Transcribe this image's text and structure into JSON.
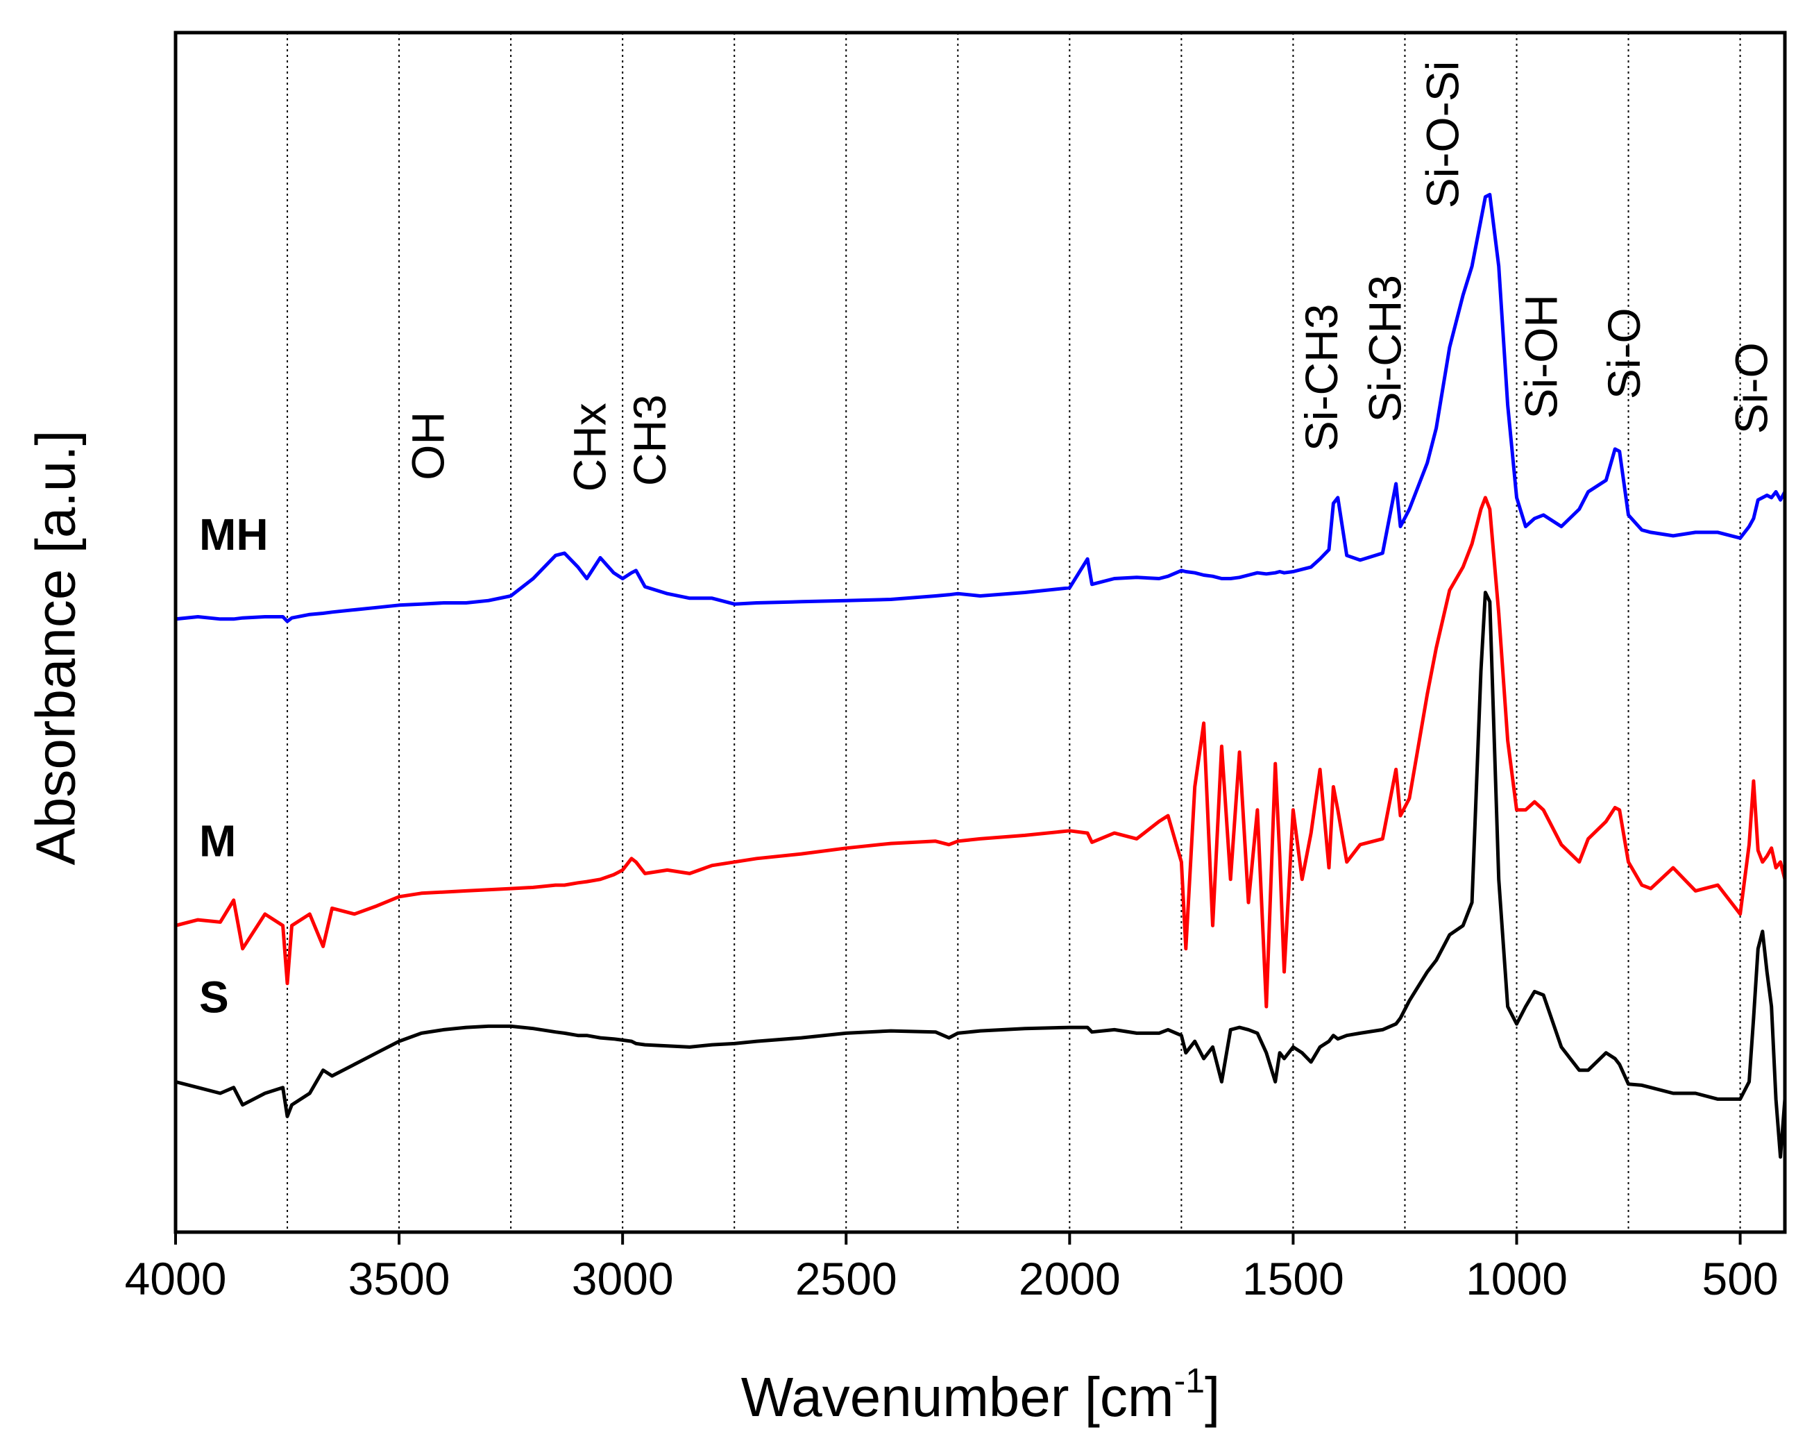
{
  "chart_data": {
    "type": "line",
    "x_label": [
      "Wavenumber [cm",
      "-1",
      "]"
    ],
    "y_label": "Absorbance [a.u.]",
    "xlim": [
      4000,
      400
    ],
    "ylim": [
      0,
      1037
    ],
    "xticks": [
      4000,
      3500,
      3000,
      2500,
      2000,
      1500,
      1000,
      500
    ],
    "xgrid": [
      3750,
      3500,
      3250,
      3000,
      2750,
      2500,
      2250,
      2000,
      1750,
      1500,
      1250,
      1000,
      750,
      500
    ],
    "x": [
      4000,
      3950,
      3900,
      3870,
      3850,
      3800,
      3760,
      3750,
      3740,
      3700,
      3670,
      3650,
      3600,
      3550,
      3500,
      3450,
      3400,
      3350,
      3300,
      3250,
      3200,
      3150,
      3130,
      3100,
      3080,
      3050,
      3020,
      3000,
      2980,
      2970,
      2950,
      2900,
      2850,
      2800,
      2750,
      2700,
      2600,
      2500,
      2400,
      2300,
      2270,
      2250,
      2200,
      2100,
      2000,
      1960,
      1950,
      1900,
      1850,
      1800,
      1780,
      1750,
      1740,
      1720,
      1700,
      1680,
      1660,
      1640,
      1620,
      1600,
      1580,
      1560,
      1540,
      1530,
      1520,
      1500,
      1480,
      1460,
      1440,
      1420,
      1410,
      1400,
      1380,
      1350,
      1300,
      1270,
      1260,
      1240,
      1200,
      1180,
      1150,
      1120,
      1100,
      1080,
      1070,
      1060,
      1040,
      1020,
      1000,
      980,
      960,
      940,
      900,
      860,
      840,
      800,
      780,
      770,
      750,
      720,
      700,
      650,
      600,
      550,
      500,
      480,
      470,
      460,
      450,
      440,
      430,
      420,
      410,
      400
    ],
    "series": [
      {
        "name": "MH",
        "color": "#0000ff",
        "values": [
          530,
          532,
          530,
          530,
          531,
          532,
          532,
          528,
          531,
          534,
          535,
          536,
          538,
          540,
          542,
          543,
          544,
          544,
          546,
          550,
          565,
          585,
          587,
          575,
          565,
          583,
          570,
          565,
          570,
          572,
          558,
          552,
          548,
          548,
          543,
          544,
          545,
          546,
          547,
          550,
          551,
          552,
          550,
          553,
          557,
          582,
          560,
          565,
          566,
          565,
          567,
          572,
          571,
          570,
          568,
          567,
          565,
          565,
          566,
          568,
          570,
          569,
          570,
          571,
          570,
          571,
          573,
          575,
          582,
          590,
          630,
          635,
          585,
          581,
          587,
          647,
          610,
          625,
          665,
          695,
          765,
          810,
          835,
          875,
          895,
          897,
          835,
          715,
          635,
          610,
          617,
          620,
          610,
          625,
          640,
          650,
          677,
          675,
          620,
          607,
          605,
          602,
          605,
          605,
          600,
          610,
          617,
          633,
          635,
          637,
          635,
          640,
          633,
          640
        ]
      },
      {
        "name": "M",
        "color": "#ff0000",
        "values": [
          265,
          270,
          268,
          287,
          245,
          275,
          265,
          215,
          265,
          275,
          247,
          280,
          275,
          282,
          290,
          293,
          294,
          295,
          296,
          297,
          298,
          300,
          300,
          302,
          303,
          305,
          309,
          313,
          323,
          320,
          310,
          313,
          310,
          317,
          320,
          323,
          327,
          332,
          336,
          338,
          335,
          338,
          340,
          343,
          347,
          345,
          337,
          345,
          340,
          355,
          360,
          320,
          245,
          385,
          440,
          265,
          420,
          305,
          415,
          285,
          365,
          195,
          405,
          325,
          225,
          365,
          305,
          345,
          400,
          315,
          385,
          365,
          320,
          335,
          340,
          400,
          360,
          375,
          465,
          505,
          555,
          575,
          595,
          625,
          635,
          625,
          535,
          425,
          365,
          365,
          372,
          365,
          335,
          320,
          340,
          355,
          367,
          365,
          320,
          300,
          297,
          315,
          295,
          300,
          275,
          335,
          390,
          330,
          320,
          325,
          332,
          315,
          320,
          305
        ]
      },
      {
        "name": "S",
        "color": "#000000",
        "values": [
          130,
          125,
          120,
          125,
          110,
          120,
          125,
          100,
          110,
          120,
          140,
          135,
          145,
          155,
          165,
          172,
          175,
          177,
          178,
          178,
          176,
          173,
          172,
          170,
          170,
          168,
          167,
          166,
          165,
          163,
          162,
          161,
          160,
          162,
          163,
          165,
          168,
          172,
          174,
          173,
          168,
          172,
          174,
          176,
          177,
          177,
          173,
          175,
          172,
          172,
          175,
          170,
          155,
          165,
          150,
          160,
          130,
          175,
          177,
          175,
          172,
          155,
          130,
          155,
          150,
          160,
          155,
          147,
          160,
          165,
          170,
          167,
          170,
          172,
          175,
          180,
          185,
          200,
          225,
          235,
          257,
          265,
          285,
          485,
          553,
          545,
          305,
          195,
          180,
          195,
          208,
          205,
          160,
          140,
          140,
          155,
          150,
          145,
          128,
          127,
          125,
          120,
          120,
          115,
          115,
          130,
          185,
          245,
          260,
          225,
          195,
          115,
          65,
          115
        ]
      }
    ],
    "annotations": [
      {
        "text": "OH",
        "x": 3436,
        "y": 650
      },
      {
        "text": "CHx",
        "x": 3074,
        "y": 640
      },
      {
        "text": "CH3",
        "x": 2940,
        "y": 645
      },
      {
        "text": "Si-CH3",
        "x": 1437,
        "y": 675
      },
      {
        "text": "Si-CH3",
        "x": 1295,
        "y": 700
      },
      {
        "text": "Si-O-Si",
        "x": 1166,
        "y": 885
      },
      {
        "text": "Si-OH",
        "x": 946,
        "y": 703
      },
      {
        "text": "Si-O",
        "x": 760,
        "y": 720
      },
      {
        "text": "Si-O",
        "x": 475,
        "y": 690
      }
    ]
  }
}
